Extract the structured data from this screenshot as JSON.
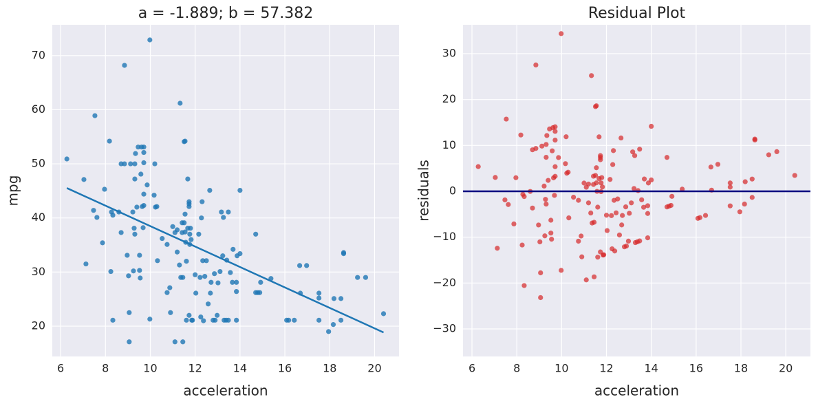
{
  "chart_data": [
    {
      "type": "scatter",
      "title": "a = -1.889; b = 57.382",
      "xlabel": "acceleration",
      "ylabel": "mpg",
      "color": "#1f77b4",
      "grid": true,
      "xlim": [
        5.63,
        21.09
      ],
      "ylim": [
        14.4,
        75.7
      ],
      "xticks": [
        6,
        8,
        10,
        12,
        14,
        16,
        18,
        20
      ],
      "yticks": [
        20,
        30,
        40,
        50,
        60,
        70
      ],
      "x": [
        6.28,
        7.04,
        7.13,
        7.53,
        7.47,
        7.62,
        7.87,
        7.96,
        8.18,
        8.24,
        8.27,
        8.33,
        8.33,
        8.6,
        8.7,
        8.7,
        8.85,
        8.85,
        8.97,
        9.03,
        9.06,
        9.06,
        9.12,
        9.22,
        9.25,
        9.28,
        9.31,
        9.34,
        9.31,
        9.31,
        9.4,
        9.46,
        9.52,
        9.52,
        9.55,
        9.58,
        9.61,
        9.64,
        9.71,
        9.71,
        9.71,
        9.71,
        9.68,
        9.71,
        9.86,
        9.98,
        9.98,
        10.17,
        10.2,
        10.23,
        10.29,
        10.32,
        10.53,
        10.75,
        10.75,
        10.87,
        10.9,
        11.0,
        11.1,
        11.1,
        11.2,
        11.2,
        11.3,
        11.33,
        11.36,
        11.42,
        11.42,
        11.45,
        11.45,
        11.51,
        11.51,
        11.55,
        11.55,
        11.55,
        11.58,
        11.61,
        11.61,
        11.67,
        11.67,
        11.73,
        11.73,
        11.73,
        11.73,
        11.76,
        11.76,
        11.79,
        11.82,
        11.85,
        11.88,
        12.0,
        12.03,
        12.16,
        12.22,
        12.25,
        12.28,
        12.31,
        12.34,
        12.37,
        12.43,
        12.5,
        12.58,
        12.65,
        12.68,
        12.71,
        12.8,
        12.86,
        12.89,
        12.98,
        13.02,
        13.11,
        13.17,
        13.23,
        13.26,
        13.29,
        13.38,
        13.41,
        13.48,
        13.48,
        13.57,
        13.66,
        13.69,
        13.84,
        13.84,
        13.84,
        13.87,
        14.0,
        14.0,
        14.7,
        14.7,
        14.79,
        14.88,
        14.92,
        15.38,
        16.08,
        16.17,
        16.42,
        16.66,
        16.69,
        16.97,
        17.52,
        17.52,
        17.52,
        17.95,
        18.16,
        18.19,
        18.5,
        18.5,
        18.62,
        18.62,
        19.24,
        19.6,
        20.4
      ],
      "values": [
        50.9,
        47.1,
        31.5,
        58.9,
        41.4,
        40.1,
        35.4,
        45.3,
        54.2,
        30.1,
        41.1,
        40.5,
        21.1,
        41.1,
        37.3,
        50.0,
        68.2,
        50.0,
        33.1,
        29.3,
        22.5,
        17.1,
        50.0,
        41.1,
        30.2,
        38.1,
        50.0,
        51.9,
        47.2,
        37.0,
        42.0,
        53.1,
        33.1,
        30.3,
        28.9,
        48.1,
        53.1,
        42.1,
        50.2,
        53.1,
        52.1,
        44.4,
        38.2,
        42.3,
        46.1,
        72.9,
        21.3,
        44.2,
        50.0,
        42.0,
        42.1,
        32.1,
        36.2,
        35.1,
        26.2,
        27.1,
        22.5,
        38.4,
        37.3,
        17.1,
        37.8,
        33.7,
        31.3,
        61.2,
        29.0,
        37.3,
        39.1,
        29.0,
        17.1,
        54.1,
        39.1,
        54.2,
        40.7,
        37.4,
        35.5,
        32.0,
        21.1,
        47.2,
        38.1,
        43.0,
        42.6,
        42.1,
        22.0,
        37.0,
        35.1,
        38.1,
        36.0,
        21.1,
        21.1,
        29.5,
        26.1,
        37.0,
        29.0,
        21.7,
        40.0,
        43.0,
        32.1,
        21.0,
        29.2,
        32.1,
        24.1,
        45.1,
        26.1,
        28.1,
        21.1,
        29.7,
        21.1,
        22.0,
        28.0,
        30.1,
        41.1,
        33.0,
        40.1,
        21.1,
        21.1,
        32.2,
        41.1,
        21.1,
        29.9,
        28.1,
        34.2,
        28.1,
        26.4,
        21.1,
        33.0,
        33.4,
        45.1,
        37.0,
        26.2,
        26.2,
        26.2,
        28.1,
        28.8,
        21.1,
        21.1,
        21.1,
        31.2,
        26.1,
        31.2,
        21.1,
        25.2,
        26.1,
        19.0,
        20.3,
        25.1,
        21.1,
        25.1,
        33.6,
        33.4,
        29.0,
        29.0,
        22.3
      ],
      "fit_line": {
        "x": [
          6.28,
          20.4
        ],
        "values": [
          45.52,
          18.84
        ],
        "color": "#1f77b4"
      }
    },
    {
      "type": "scatter",
      "title": "Residual Plot",
      "xlabel": "acceleration",
      "ylabel": "residuals",
      "color": "#d62728",
      "grid": true,
      "xlim": [
        5.6,
        21.1
      ],
      "ylim": [
        -36.0,
        36.3
      ],
      "xticks": [
        6,
        8,
        10,
        12,
        14,
        16,
        18,
        20
      ],
      "yticks": [
        {
          "value": -30,
          "label": "−30"
        },
        {
          "value": -20,
          "label": "−20"
        },
        {
          "value": -10,
          "label": "−10"
        },
        0,
        10,
        20,
        30
      ],
      "x": [
        6.28,
        7.04,
        7.13,
        7.53,
        7.47,
        7.62,
        7.87,
        7.96,
        8.18,
        8.24,
        8.27,
        8.33,
        8.33,
        8.6,
        8.7,
        8.7,
        8.85,
        8.85,
        8.97,
        9.03,
        9.06,
        9.06,
        9.12,
        9.22,
        9.25,
        9.28,
        9.31,
        9.34,
        9.31,
        9.31,
        9.4,
        9.46,
        9.52,
        9.52,
        9.55,
        9.58,
        9.61,
        9.64,
        9.71,
        9.71,
        9.71,
        9.71,
        9.68,
        9.71,
        9.86,
        9.98,
        9.98,
        10.17,
        10.2,
        10.23,
        10.29,
        10.32,
        10.53,
        10.75,
        10.75,
        10.87,
        10.9,
        11.0,
        11.1,
        11.1,
        11.2,
        11.2,
        11.3,
        11.33,
        11.36,
        11.42,
        11.42,
        11.45,
        11.45,
        11.51,
        11.51,
        11.55,
        11.55,
        11.55,
        11.58,
        11.61,
        11.61,
        11.67,
        11.67,
        11.73,
        11.73,
        11.73,
        11.73,
        11.76,
        11.76,
        11.79,
        11.82,
        11.85,
        11.88,
        12.0,
        12.03,
        12.16,
        12.22,
        12.25,
        12.28,
        12.31,
        12.34,
        12.37,
        12.43,
        12.5,
        12.58,
        12.65,
        12.68,
        12.71,
        12.8,
        12.86,
        12.89,
        12.98,
        13.02,
        13.11,
        13.17,
        13.23,
        13.26,
        13.29,
        13.38,
        13.41,
        13.48,
        13.48,
        13.57,
        13.66,
        13.69,
        13.84,
        13.84,
        13.84,
        13.87,
        14.0,
        14.0,
        14.7,
        14.7,
        14.79,
        14.88,
        14.92,
        15.38,
        16.08,
        16.17,
        16.42,
        16.66,
        16.69,
        16.97,
        17.52,
        17.52,
        17.52,
        17.95,
        18.16,
        18.19,
        18.5,
        18.5,
        18.62,
        18.62,
        19.24,
        19.6,
        20.4
      ],
      "values": [
        5.38,
        3.02,
        -12.41,
        15.74,
        -1.87,
        -2.89,
        -7.11,
        2.96,
        12.27,
        -11.71,
        -0.66,
        -1.14,
        -20.54,
        -0.03,
        -3.65,
        9.05,
        27.54,
        9.34,
        -7.34,
        -11.02,
        -17.77,
        -23.17,
        9.85,
        1.14,
        -9.71,
        -1.75,
        10.21,
        12.16,
        7.41,
        -2.79,
        2.38,
        13.59,
        -6.3,
        -9.1,
        -10.44,
        8.82,
        13.87,
        2.93,
        11.16,
        14.06,
        13.06,
        5.36,
        -0.89,
        3.26,
        7.35,
        34.37,
        -17.23,
        6.03,
        11.89,
        3.94,
        4.16,
        -5.79,
        -1.29,
        -1.97,
        -10.87,
        -9.75,
        -14.29,
        1.8,
        0.89,
        -19.31,
        1.58,
        -2.52,
        -4.73,
        25.22,
        -6.92,
        1.49,
        3.29,
        -6.75,
        -18.65,
        18.46,
        3.46,
        18.64,
        5.14,
        1.84,
        -0.01,
        -3.45,
        -14.35,
        11.87,
        2.77,
        7.78,
        7.38,
        6.88,
        -13.22,
        1.83,
        -0.07,
        2.99,
        0.95,
        -13.9,
        -13.84,
        -5.21,
        -8.56,
        2.59,
        -5.3,
        -12.54,
        5.82,
        8.87,
        -1.97,
        -13.01,
        -4.7,
        -1.67,
        -9.52,
        11.62,
        -7.33,
        -5.27,
        -12.1,
        -3.39,
        -11.93,
        -10.86,
        -4.79,
        -2.52,
        8.6,
        0.61,
        7.77,
        -11.18,
        -11.01,
        0.15,
        9.18,
        -10.82,
        -1.85,
        -3.48,
        2.68,
        -3.14,
        -4.84,
        -10.14,
        1.82,
        2.47,
        14.17,
        7.39,
        -3.41,
        -3.24,
        -3.07,
        -1.1,
        0.47,
        -5.9,
        -5.73,
        -5.26,
        5.29,
        0.25,
        5.88,
        -3.18,
        0.92,
        1.82,
        -4.47,
        -2.78,
        2.08,
        -1.33,
        2.67,
        11.39,
        11.19,
        7.96,
        8.64,
        3.46
      ],
      "hline": {
        "value": 0,
        "color": "#000080"
      }
    }
  ]
}
